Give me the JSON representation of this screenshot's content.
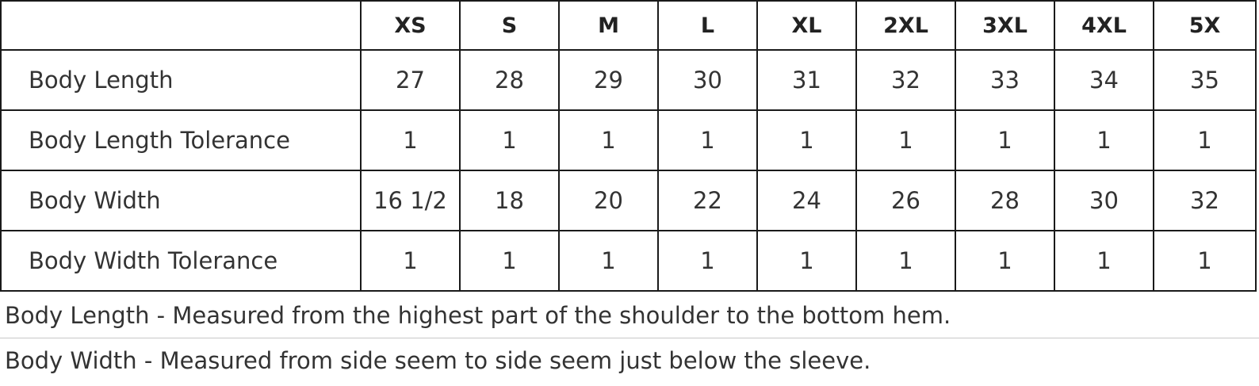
{
  "table": {
    "corner": "",
    "sizes": [
      "XS",
      "S",
      "M",
      "L",
      "XL",
      "2XL",
      "3XL",
      "4XL",
      "5X"
    ],
    "rows": [
      {
        "label": "Body Length",
        "values": [
          "27",
          "28",
          "29",
          "30",
          "31",
          "32",
          "33",
          "34",
          "35"
        ]
      },
      {
        "label": "Body Length Tolerance",
        "values": [
          "1",
          "1",
          "1",
          "1",
          "1",
          "1",
          "1",
          "1",
          "1"
        ]
      },
      {
        "label": "Body Width",
        "values": [
          "16 1/2",
          "18",
          "20",
          "22",
          "24",
          "26",
          "28",
          "30",
          "32"
        ]
      },
      {
        "label": "Body Width Tolerance",
        "values": [
          "1",
          "1",
          "1",
          "1",
          "1",
          "1",
          "1",
          "1",
          "1"
        ]
      }
    ]
  },
  "notes": {
    "body_length": "Body Length - Measured from the highest part of the shoulder to the bottom hem.",
    "body_width": "Body Width - Measured from side seem to side seem just below the sleeve."
  }
}
